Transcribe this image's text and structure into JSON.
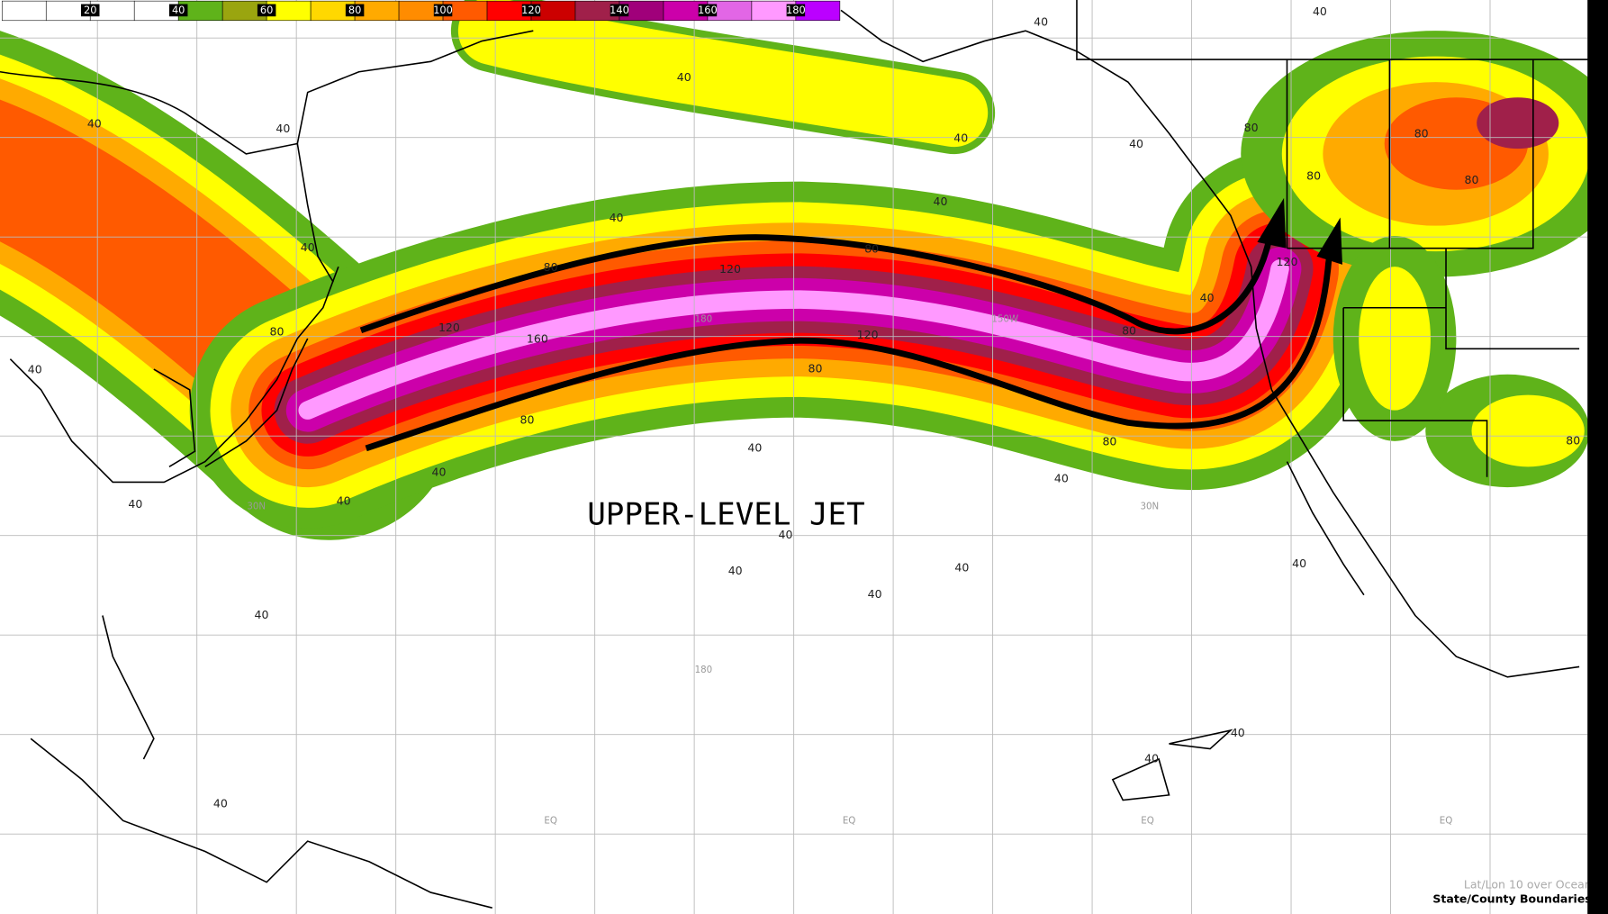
{
  "colorbar": {
    "ticks": [
      20,
      40,
      60,
      80,
      100,
      120,
      140,
      160,
      180
    ],
    "colors": [
      "#ffffff",
      "#ffffff",
      "#ffffff",
      "#ffffff",
      "#5fb31a",
      "#9aa50f",
      "#ffff00",
      "#ffd800",
      "#ffaa00",
      "#ff8c00",
      "#ff5a00",
      "#ff0000",
      "#cc0000",
      "#a0204a",
      "#a0007a",
      "#cc00aa",
      "#e266e6",
      "#ff99ff",
      "#bb00ff"
    ]
  },
  "title": "UPPER-LEVEL JET",
  "grid_labels": [
    "30N",
    "30N",
    "180",
    "150W",
    "180",
    "EQ",
    "EQ",
    "EQ",
    "EQ"
  ],
  "contour_labels": [
    40,
    40,
    40,
    40,
    40,
    40,
    40,
    40,
    40,
    40,
    40,
    40,
    40,
    40,
    40,
    40,
    40,
    40,
    40,
    40,
    40,
    40,
    40,
    40,
    40,
    40,
    80,
    80,
    80,
    80,
    80,
    80,
    80,
    80,
    80,
    80,
    80,
    80,
    120,
    120,
    120,
    120,
    160
  ],
  "footer": {
    "line1": "Lat/Lon 10 over Ocean",
    "line2": "State/County Boundaries"
  }
}
